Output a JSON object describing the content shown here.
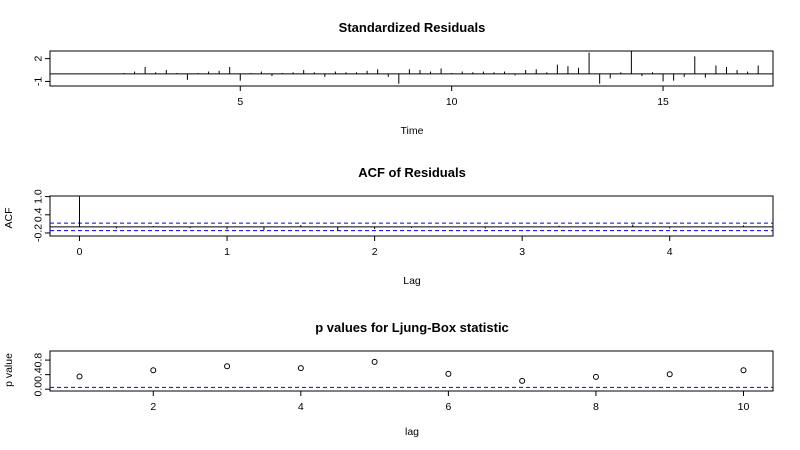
{
  "chart_data": [
    {
      "type": "bar",
      "title": "Standardized Residuals",
      "xlabel": "Time",
      "ylabel": "",
      "xlim": [
        0.5,
        17.6
      ],
      "ylim": [
        -1.6,
        3.0
      ],
      "xticks": [
        5,
        10,
        15
      ],
      "xtick_labels": [
        "5",
        "10",
        "15"
      ],
      "yticks": [
        2,
        -1
      ],
      "ytick_labels": [
        "2",
        "-1"
      ],
      "x": [
        2.25,
        2.5,
        2.75,
        3.0,
        3.25,
        3.5,
        3.75,
        4.0,
        4.25,
        4.5,
        4.75,
        5.0,
        5.25,
        5.5,
        5.75,
        6.0,
        6.25,
        6.5,
        6.75,
        7.0,
        7.25,
        7.5,
        7.75,
        8.0,
        8.25,
        8.5,
        8.75,
        9.0,
        9.25,
        9.5,
        9.75,
        10.0,
        10.25,
        10.5,
        10.75,
        11.0,
        11.25,
        11.5,
        11.75,
        12.0,
        12.25,
        12.5,
        12.75,
        13.0,
        13.25,
        13.5,
        13.75,
        14.0,
        14.25,
        14.5,
        14.75,
        15.0,
        15.25,
        15.5,
        15.75,
        16.0,
        16.25,
        16.5,
        16.75,
        17.0,
        17.25
      ],
      "values": [
        0.1,
        0.3,
        0.9,
        0.2,
        0.5,
        0.1,
        -0.8,
        0.1,
        0.3,
        0.4,
        0.9,
        -0.9,
        0.1,
        0.3,
        -0.3,
        0.1,
        0.2,
        0.5,
        0.2,
        -0.4,
        0.3,
        0.2,
        0.2,
        0.4,
        0.6,
        -0.4,
        -1.3,
        0.6,
        0.5,
        0.3,
        0.7,
        0.1,
        0.3,
        0.2,
        0.3,
        0.2,
        0.3,
        -0.2,
        0.5,
        0.6,
        0.2,
        1.2,
        1.0,
        0.8,
        2.8,
        -1.3,
        -0.6,
        0.2,
        3.0,
        -0.3,
        0.2,
        -1.0,
        -0.9,
        -0.4,
        2.3,
        -0.5,
        1.1,
        0.9,
        0.5,
        0.3,
        1.1
      ]
    },
    {
      "type": "bar",
      "title": "ACF of Residuals",
      "xlabel": "Lag",
      "ylabel": "ACF",
      "xlim": [
        -0.2,
        4.7
      ],
      "ylim": [
        -0.3,
        1.02
      ],
      "xticks": [
        0,
        1,
        2,
        3,
        4
      ],
      "xtick_labels": [
        "0",
        "1",
        "2",
        "3",
        "4"
      ],
      "yticks": [
        1.0,
        0.4,
        -0.2
      ],
      "ytick_labels": [
        "1.0",
        "0.4",
        "-0.2"
      ],
      "x": [
        0,
        0.25,
        0.5,
        0.75,
        1.0,
        1.25,
        1.5,
        1.75,
        2.0,
        2.25,
        2.5,
        2.75,
        3.0,
        3.25,
        3.5,
        3.75,
        4.0,
        4.25,
        4.5
      ],
      "values": [
        1.0,
        -0.05,
        0.03,
        -0.04,
        -0.08,
        -0.1,
        0.06,
        -0.12,
        -0.07,
        -0.03,
        0.01,
        -0.05,
        -0.02,
        0.04,
        0.02,
        0.08,
        -0.05,
        0.02,
        0.05
      ],
      "confidence_band": [
        0.124,
        -0.124
      ],
      "band_color": "#0000ff"
    },
    {
      "type": "scatter",
      "title": "p values for Ljung-Box statistic",
      "xlabel": "lag",
      "ylabel": "p value",
      "xlim": [
        0.6,
        10.4
      ],
      "ylim": [
        -0.05,
        1.05
      ],
      "xticks": [
        2,
        4,
        6,
        8,
        10
      ],
      "xtick_labels": [
        "2",
        "4",
        "6",
        "8",
        "10"
      ],
      "yticks": [
        0.0,
        0.4,
        0.8
      ],
      "ytick_labels": [
        "0.0",
        "0.4",
        "0.8"
      ],
      "x": [
        1,
        2,
        3,
        4,
        5,
        6,
        7,
        8,
        9,
        10
      ],
      "values": [
        0.35,
        0.52,
        0.63,
        0.58,
        0.75,
        0.42,
        0.23,
        0.34,
        0.41,
        0.52
      ],
      "reference_line": 0.05,
      "reference_color": "#0000ff"
    }
  ]
}
